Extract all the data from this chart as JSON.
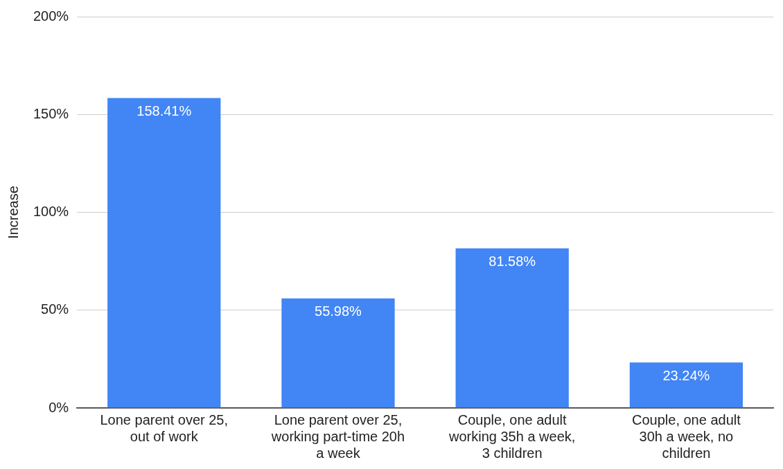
{
  "chart_data": {
    "type": "bar",
    "ylabel": "Increase",
    "categories": [
      "Lone parent over 25, out of work",
      "Lone parent over 25, working part-time 20h a week",
      "Couple, one adult working 35h a week, 3 children",
      "Couple, one adult 30h a week, no children"
    ],
    "values": [
      158.41,
      55.98,
      81.58,
      23.24
    ],
    "value_labels": [
      "158.41%",
      "55.98%",
      "81.58%",
      "23.24%"
    ],
    "color": "#4285f4",
    "ylim": [
      0,
      200
    ],
    "yticks": [
      {
        "value": 0,
        "label": "0%"
      },
      {
        "value": 50,
        "label": "50%"
      },
      {
        "value": 100,
        "label": "100%"
      },
      {
        "value": 150,
        "label": "150%"
      },
      {
        "value": 200,
        "label": "200%"
      }
    ],
    "grid": "y",
    "legend": false
  }
}
